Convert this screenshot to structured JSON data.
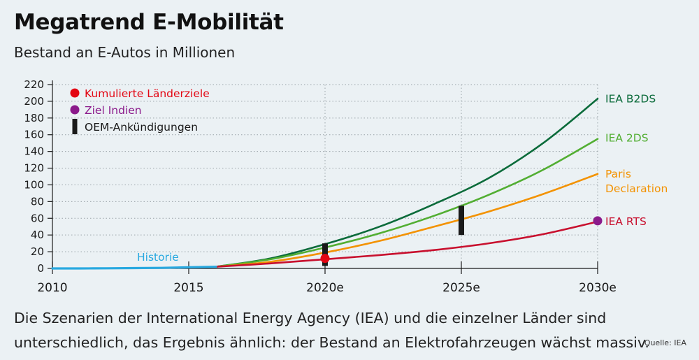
{
  "title": "Megatrend E-Mobilität",
  "subtitle": "Bestand an E-Autos in Millionen",
  "caption": "Die Szenarien der International Energy Agency (IEA) und die einzelner Länder sind unterschiedlich, das Ergebnis ähnlich: der Bestand an Elektrofahrzeugen wächst massiv.",
  "source": "Quelle: IEA",
  "chart_data": {
    "type": "line",
    "xlim": [
      2010,
      2030
    ],
    "ylim": [
      0,
      220
    ],
    "x_ticks": [
      2010,
      2015,
      2020,
      2025,
      2030
    ],
    "x_tick_labels": [
      "2010",
      "2015",
      "2020e",
      "2025e",
      "2030e"
    ],
    "y_ticks": [
      0,
      20,
      40,
      60,
      80,
      100,
      120,
      140,
      160,
      180,
      200,
      220
    ],
    "grid": "horizontal dotted",
    "legend": [
      {
        "label": "Kumulierte Länderziele",
        "marker": "dot",
        "color": "#e30613"
      },
      {
        "label": "Ziel Indien",
        "marker": "dot",
        "color": "#8b1a8b"
      },
      {
        "label": "OEM-Ankündigungen",
        "marker": "bar",
        "color": "#1a1a1a"
      }
    ],
    "series": [
      {
        "name": "Historie",
        "color": "#29a9e0",
        "x": [
          2010,
          2011,
          2012,
          2013,
          2014,
          2015,
          2016
        ],
        "y": [
          0,
          0,
          0.2,
          0.4,
          0.7,
          1.3,
          2.0
        ]
      },
      {
        "name": "IEA RTS",
        "color": "#c8102e",
        "x": [
          2016,
          2018,
          2020,
          2022,
          2024,
          2026,
          2028,
          2030
        ],
        "y": [
          2,
          6,
          11,
          16,
          22,
          30,
          41,
          56
        ]
      },
      {
        "name": "Paris Declaration",
        "color": "#f39200",
        "x": [
          2016,
          2018,
          2020,
          2022,
          2024,
          2026,
          2028,
          2030
        ],
        "y": [
          2,
          8,
          19,
          33,
          50,
          68,
          89,
          113
        ]
      },
      {
        "name": "IEA 2DS",
        "color": "#52ae32",
        "x": [
          2016,
          2018,
          2020,
          2022,
          2024,
          2026,
          2028,
          2030
        ],
        "y": [
          2,
          11,
          25,
          42,
          63,
          88,
          118,
          155
        ]
      },
      {
        "name": "IEA B2DS",
        "color": "#0b6b3a",
        "x": [
          2016,
          2018,
          2020,
          2022,
          2024,
          2026,
          2028,
          2030
        ],
        "y": [
          2,
          12,
          29,
          50,
          77,
          108,
          150,
          203
        ]
      }
    ],
    "points": [
      {
        "name": "Kumulierte Länderziele",
        "x": 2020,
        "y": 12,
        "color": "#e30613"
      },
      {
        "name": "Ziel Indien",
        "x": 2030,
        "y": 57,
        "color": "#8b1a8b"
      }
    ],
    "ranges": [
      {
        "name": "OEM-Ankündigungen",
        "x": 2020,
        "y_min": 3,
        "y_max": 30
      },
      {
        "name": "OEM-Ankündigungen",
        "x": 2025,
        "y_min": 40,
        "y_max": 75
      }
    ],
    "annotations": [
      {
        "text": "Historie",
        "x": 2013,
        "y": 6,
        "color": "#29a9e0"
      }
    ],
    "series_labels": [
      {
        "lines": [
          "IEA B2DS"
        ],
        "color": "#0b6b3a",
        "value_y": 203
      },
      {
        "lines": [
          "IEA 2DS"
        ],
        "color": "#52ae32",
        "value_y": 156
      },
      {
        "lines": [
          "Paris",
          "Declaration"
        ],
        "color": "#f39200",
        "value_y": 113
      },
      {
        "lines": [
          "IEA RTS"
        ],
        "color": "#c8102e",
        "value_y": 56
      }
    ]
  }
}
